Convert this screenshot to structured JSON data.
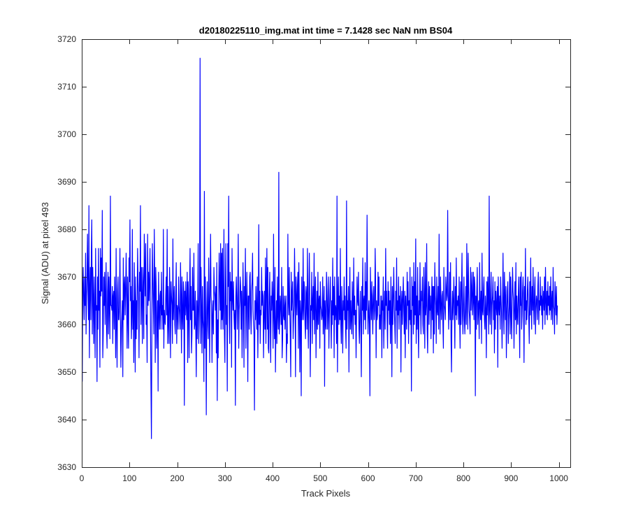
{
  "chart_data": {
    "type": "line",
    "title": "d20180225110_img.mat int time = 7.1428 sec  NaN nm BS04",
    "xlabel": "Track Pixels",
    "ylabel": "Signal (ADU) at pixel 493",
    "xlim": [
      0,
      1024
    ],
    "ylim": [
      3630,
      3720
    ],
    "xticks": [
      0,
      100,
      200,
      300,
      400,
      500,
      600,
      700,
      800,
      900,
      1000
    ],
    "yticks": [
      3630,
      3640,
      3650,
      3660,
      3670,
      3680,
      3690,
      3700,
      3710,
      3720
    ],
    "grid": false,
    "legend": "none",
    "line_color": "#0000ff",
    "series": [
      {
        "x_start": 1,
        "x_step": 1,
        "values": [
          3648,
          3667,
          3672,
          3665,
          3661,
          3670,
          3664,
          3675,
          3658,
          3666,
          3670,
          3679,
          3667,
          3661,
          3685,
          3653,
          3667,
          3672,
          3661,
          3675,
          3682,
          3658,
          3672,
          3666,
          3656,
          3670,
          3662,
          3653,
          3676,
          3663,
          3664,
          3648,
          3670,
          3659,
          3676,
          3663,
          3667,
          3651,
          3676,
          3666,
          3674,
          3667,
          3684,
          3653,
          3658,
          3670,
          3664,
          3671,
          3660,
          3666,
          3673,
          3659,
          3655,
          3667,
          3671,
          3658,
          3670,
          3664,
          3657,
          3687,
          3664,
          3664,
          3663,
          3668,
          3656,
          3666,
          3667,
          3659,
          3670,
          3664,
          3653,
          3676,
          3660,
          3651,
          3667,
          3670,
          3661,
          3661,
          3664,
          3676,
          3662,
          3651,
          3659,
          3662,
          3665,
          3649,
          3674,
          3661,
          3668,
          3670,
          3662,
          3667,
          3675,
          3666,
          3655,
          3670,
          3662,
          3655,
          3674,
          3669,
          3682,
          3665,
          3668,
          3657,
          3662,
          3680,
          3659,
          3665,
          3652,
          3673,
          3664,
          3650,
          3670,
          3657,
          3665,
          3659,
          3676,
          3669,
          3665,
          3653,
          3671,
          3667,
          3685,
          3660,
          3672,
          3666,
          3656,
          3672,
          3668,
          3657,
          3679,
          3672,
          3666,
          3677,
          3660,
          3662,
          3652,
          3679,
          3664,
          3671,
          3665,
          3669,
          3676,
          3660,
          3647,
          3636,
          3660,
          3677,
          3670,
          3664,
          3658,
          3680,
          3669,
          3652,
          3672,
          3668,
          3655,
          3660,
          3665,
          3646,
          3671,
          3663,
          3659,
          3666,
          3667,
          3659,
          3671,
          3662,
          3664,
          3659,
          3680,
          3655,
          3663,
          3661,
          3660,
          3666,
          3670,
          3662,
          3680,
          3656,
          3668,
          3660,
          3656,
          3672,
          3666,
          3653,
          3669,
          3666,
          3664,
          3656,
          3678,
          3661,
          3665,
          3668,
          3660,
          3658,
          3666,
          3673,
          3656,
          3664,
          3663,
          3659,
          3670,
          3664,
          3662,
          3659,
          3673,
          3666,
          3654,
          3670,
          3662,
          3659,
          3669,
          3667,
          3643,
          3667,
          3662,
          3669,
          3664,
          3661,
          3671,
          3652,
          3669,
          3664,
          3653,
          3667,
          3676,
          3661,
          3668,
          3654,
          3658,
          3672,
          3663,
          3663,
          3675,
          3659,
          3660,
          3667,
          3658,
          3649,
          3665,
          3657,
          3664,
          3677,
          3656,
          3660,
          3667,
          3716,
          3656,
          3672,
          3663,
          3654,
          3668,
          3661,
          3659,
          3648,
          3688,
          3655,
          3670,
          3660,
          3641,
          3663,
          3669,
          3660,
          3657,
          3674,
          3665,
          3652,
          3667,
          3679,
          3666,
          3664,
          3652,
          3662,
          3665,
          3658,
          3672,
          3667,
          3666,
          3663,
          3668,
          3654,
          3673,
          3644,
          3661,
          3653,
          3666,
          3675,
          3668,
          3663,
          3677,
          3659,
          3675,
          3661,
          3676,
          3659,
          3664,
          3680,
          3658,
          3652,
          3666,
          3677,
          3660,
          3664,
          3646,
          3677,
          3668,
          3687,
          3662,
          3656,
          3671,
          3665,
          3669,
          3651,
          3676,
          3666,
          3663,
          3669,
          3662,
          3659,
          3663,
          3643,
          3666,
          3670,
          3664,
          3659,
          3667,
          3679,
          3655,
          3663,
          3665,
          3670,
          3668,
          3659,
          3667,
          3653,
          3663,
          3673,
          3664,
          3651,
          3668,
          3664,
          3676,
          3655,
          3663,
          3671,
          3664,
          3648,
          3666,
          3666,
          3659,
          3670,
          3671,
          3662,
          3658,
          3667,
          3669,
          3675,
          3663,
          3660,
          3658,
          3642,
          3665,
          3661,
          3668,
          3663,
          3659,
          3670,
          3653,
          3661,
          3681,
          3660,
          3667,
          3656,
          3663,
          3662,
          3672,
          3664,
          3667,
          3666,
          3653,
          3662,
          3667,
          3659,
          3674,
          3656,
          3668,
          3676,
          3659,
          3672,
          3655,
          3654,
          3666,
          3671,
          3661,
          3652,
          3666,
          3663,
          3669,
          3665,
          3655,
          3679,
          3662,
          3657,
          3672,
          3650,
          3659,
          3665,
          3656,
          3670,
          3662,
          3659,
          3692,
          3658,
          3661,
          3666,
          3664,
          3660,
          3672,
          3653,
          3657,
          3668,
          3662,
          3661,
          3666,
          3659,
          3664,
          3666,
          3652,
          3658,
          3656,
          3679,
          3665,
          3662,
          3672,
          3663,
          3658,
          3649,
          3671,
          3663,
          3666,
          3669,
          3657,
          3661,
          3664,
          3676,
          3667,
          3649,
          3670,
          3666,
          3662,
          3668,
          3671,
          3655,
          3673,
          3665,
          3650,
          3665,
          3662,
          3645,
          3670,
          3661,
          3663,
          3676,
          3661,
          3669,
          3667,
          3660,
          3657,
          3668,
          3666,
          3659,
          3676,
          3662,
          3655,
          3667,
          3675,
          3663,
          3649,
          3664,
          3663,
          3671,
          3656,
          3665,
          3668,
          3661,
          3675,
          3658,
          3666,
          3670,
          3653,
          3662,
          3667,
          3659,
          3671,
          3660,
          3665,
          3666,
          3655,
          3669,
          3664,
          3663,
          3661,
          3662,
          3670,
          3658,
          3664,
          3668,
          3647,
          3665,
          3661,
          3659,
          3671,
          3667,
          3659,
          3663,
          3670,
          3655,
          3662,
          3666,
          3670,
          3662,
          3655,
          3665,
          3660,
          3674,
          3662,
          3668,
          3653,
          3670,
          3661,
          3664,
          3663,
          3656,
          3687,
          3650,
          3665,
          3670,
          3660,
          3666,
          3661,
          3676,
          3660,
          3656,
          3668,
          3663,
          3654,
          3665,
          3663,
          3670,
          3661,
          3666,
          3659,
          3655,
          3686,
          3659,
          3665,
          3663,
          3668,
          3650,
          3665,
          3672,
          3659,
          3665,
          3661,
          3658,
          3669,
          3664,
          3657,
          3674,
          3662,
          3666,
          3660,
          3663,
          3653,
          3662,
          3670,
          3665,
          3664,
          3671,
          3659,
          3656,
          3663,
          3667,
          3660,
          3649,
          3668,
          3663,
          3674,
          3658,
          3665,
          3666,
          3661,
          3673,
          3659,
          3669,
          3663,
          3683,
          3667,
          3658,
          3662,
          3665,
          3660,
          3645,
          3672,
          3665,
          3661,
          3669,
          3664,
          3658,
          3666,
          3668,
          3661,
          3663,
          3676,
          3668,
          3653,
          3665,
          3661,
          3662,
          3671,
          3664,
          3670,
          3659,
          3662,
          3659,
          3666,
          3666,
          3653,
          3665,
          3663,
          3670,
          3655,
          3662,
          3667,
          3659,
          3676,
          3664,
          3667,
          3661,
          3655,
          3669,
          3663,
          3667,
          3660,
          3665,
          3656,
          3670,
          3662,
          3649,
          3668,
          3660,
          3666,
          3672,
          3664,
          3660,
          3656,
          3667,
          3663,
          3674,
          3655,
          3665,
          3662,
          3670,
          3659,
          3666,
          3663,
          3668,
          3650,
          3664,
          3667,
          3660,
          3665,
          3670,
          3663,
          3658,
          3667,
          3653,
          3666,
          3662,
          3659,
          3671,
          3664,
          3669,
          3656,
          3665,
          3661,
          3672,
          3660,
          3663,
          3646,
          3670,
          3664,
          3668,
          3658,
          3673,
          3660,
          3669,
          3662,
          3678,
          3656,
          3666,
          3659,
          3672,
          3661,
          3653,
          3665,
          3662,
          3673,
          3664,
          3658,
          3667,
          3665,
          3670,
          3660,
          3658,
          3672,
          3665,
          3655,
          3673,
          3662,
          3664,
          3677,
          3659,
          3654,
          3665,
          3669,
          3660,
          3668,
          3663,
          3666,
          3657,
          3664,
          3670,
          3661,
          3668,
          3654,
          3668,
          3658,
          3673,
          3666,
          3664,
          3656,
          3670,
          3663,
          3662,
          3668,
          3659,
          3679,
          3665,
          3658,
          3670,
          3664,
          3661,
          3666,
          3667,
          3660,
          3655,
          3672,
          3664,
          3663,
          3661,
          3670,
          3668,
          3665,
          3666,
          3684,
          3667,
          3659,
          3665,
          3671,
          3661,
          3673,
          3657,
          3650,
          3663,
          3667,
          3661,
          3665,
          3670,
          3663,
          3655,
          3668,
          3662,
          3674,
          3661,
          3665,
          3664,
          3666,
          3660,
          3670,
          3662,
          3655,
          3669,
          3660,
          3667,
          3675,
          3662,
          3658,
          3665,
          3670,
          3661,
          3658,
          3663,
          3668,
          3660,
          3677,
          3667,
          3659,
          3675,
          3668,
          3663,
          3661,
          3658,
          3672,
          3663,
          3667,
          3671,
          3662,
          3665,
          3671,
          3661,
          3670,
          3668,
          3645,
          3666,
          3659,
          3667,
          3672,
          3660,
          3664,
          3665,
          3657,
          3673,
          3664,
          3661,
          3667,
          3656,
          3675,
          3663,
          3662,
          3667,
          3670,
          3661,
          3659,
          3666,
          3663,
          3653,
          3669,
          3662,
          3670,
          3665,
          3658,
          3687,
          3663,
          3660,
          3667,
          3671,
          3658,
          3664,
          3666,
          3670,
          3661,
          3665,
          3654,
          3669,
          3659,
          3667,
          3664,
          3662,
          3668,
          3651,
          3670,
          3664,
          3662,
          3666,
          3659,
          3670,
          3665,
          3662,
          3655,
          3664,
          3675,
          3663,
          3658,
          3671,
          3666,
          3661,
          3668,
          3653,
          3662,
          3667,
          3669,
          3656,
          3661,
          3664,
          3671,
          3658,
          3670,
          3662,
          3657,
          3665,
          3672,
          3667,
          3665,
          3655,
          3663,
          3669,
          3661,
          3673,
          3658,
          3666,
          3662,
          3660,
          3666,
          3670,
          3662,
          3653,
          3670,
          3664,
          3671,
          3659,
          3662,
          3667,
          3670,
          3665,
          3652,
          3668,
          3663,
          3676,
          3660,
          3665,
          3661,
          3667,
          3670,
          3664,
          3661,
          3656,
          3669,
          3662,
          3674,
          3665,
          3659,
          3668,
          3663,
          3672,
          3664,
          3660,
          3667,
          3670,
          3658,
          3663,
          3666,
          3665,
          3661,
          3668,
          3671,
          3660,
          3665,
          3663,
          3670,
          3664,
          3666,
          3662,
          3668,
          3659,
          3665,
          3667,
          3663,
          3670,
          3660,
          3672,
          3665,
          3662,
          3667,
          3661,
          3669,
          3664,
          3666,
          3662,
          3668,
          3663,
          3670,
          3661,
          3665,
          3667,
          3660,
          3672,
          3664,
          3663,
          3658,
          3669,
          3665,
          3662,
          3668,
          3660,
          3664
        ]
      }
    ]
  }
}
